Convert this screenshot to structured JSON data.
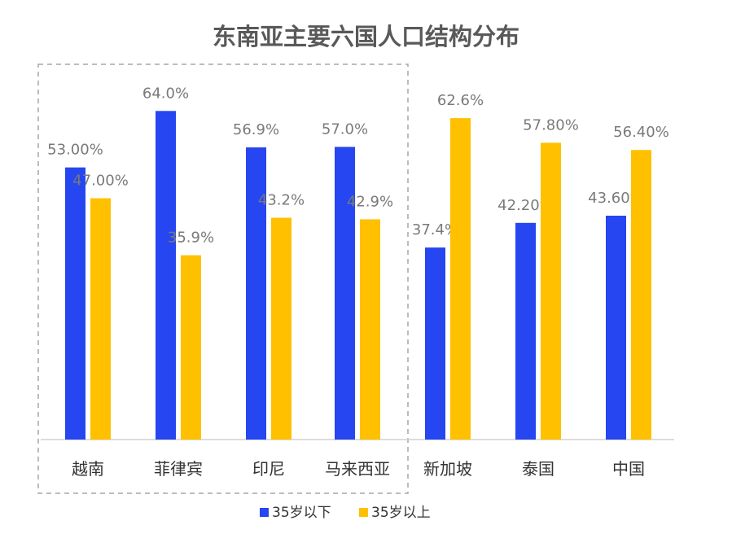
{
  "colors": {
    "under35": "#2546F0",
    "over35": "#FFC000",
    "axis": "#d0d0d0",
    "highlight_box": "#a6a6a6"
  },
  "chart_data": {
    "type": "bar",
    "title": "东南亚主要六国人口结构分布",
    "categories": [
      "越南",
      "菲律宾",
      "印尼",
      "马来西亚",
      "新加坡",
      "泰国",
      "中国"
    ],
    "series": [
      {
        "name": "35岁以下",
        "values": [
          53.0,
          64.0,
          56.9,
          57.0,
          37.4,
          42.2,
          43.6
        ],
        "labels": [
          "53.00%",
          "64.0%",
          "56.9%",
          "57.0%",
          "37.4%",
          "42.20%",
          "43.60%"
        ]
      },
      {
        "name": "35岁以上",
        "values": [
          47.0,
          35.9,
          43.2,
          42.9,
          62.6,
          57.8,
          56.4
        ],
        "labels": [
          "47.00%",
          "35.9%",
          "43.2%",
          "42.9%",
          "62.6%",
          "57.80%",
          "56.40%"
        ]
      }
    ],
    "ylim": [
      0,
      65
    ],
    "grid": false,
    "legend": "bottom-center",
    "highlight_group": [
      "越南",
      "菲律宾",
      "印尼",
      "马来西亚"
    ]
  }
}
